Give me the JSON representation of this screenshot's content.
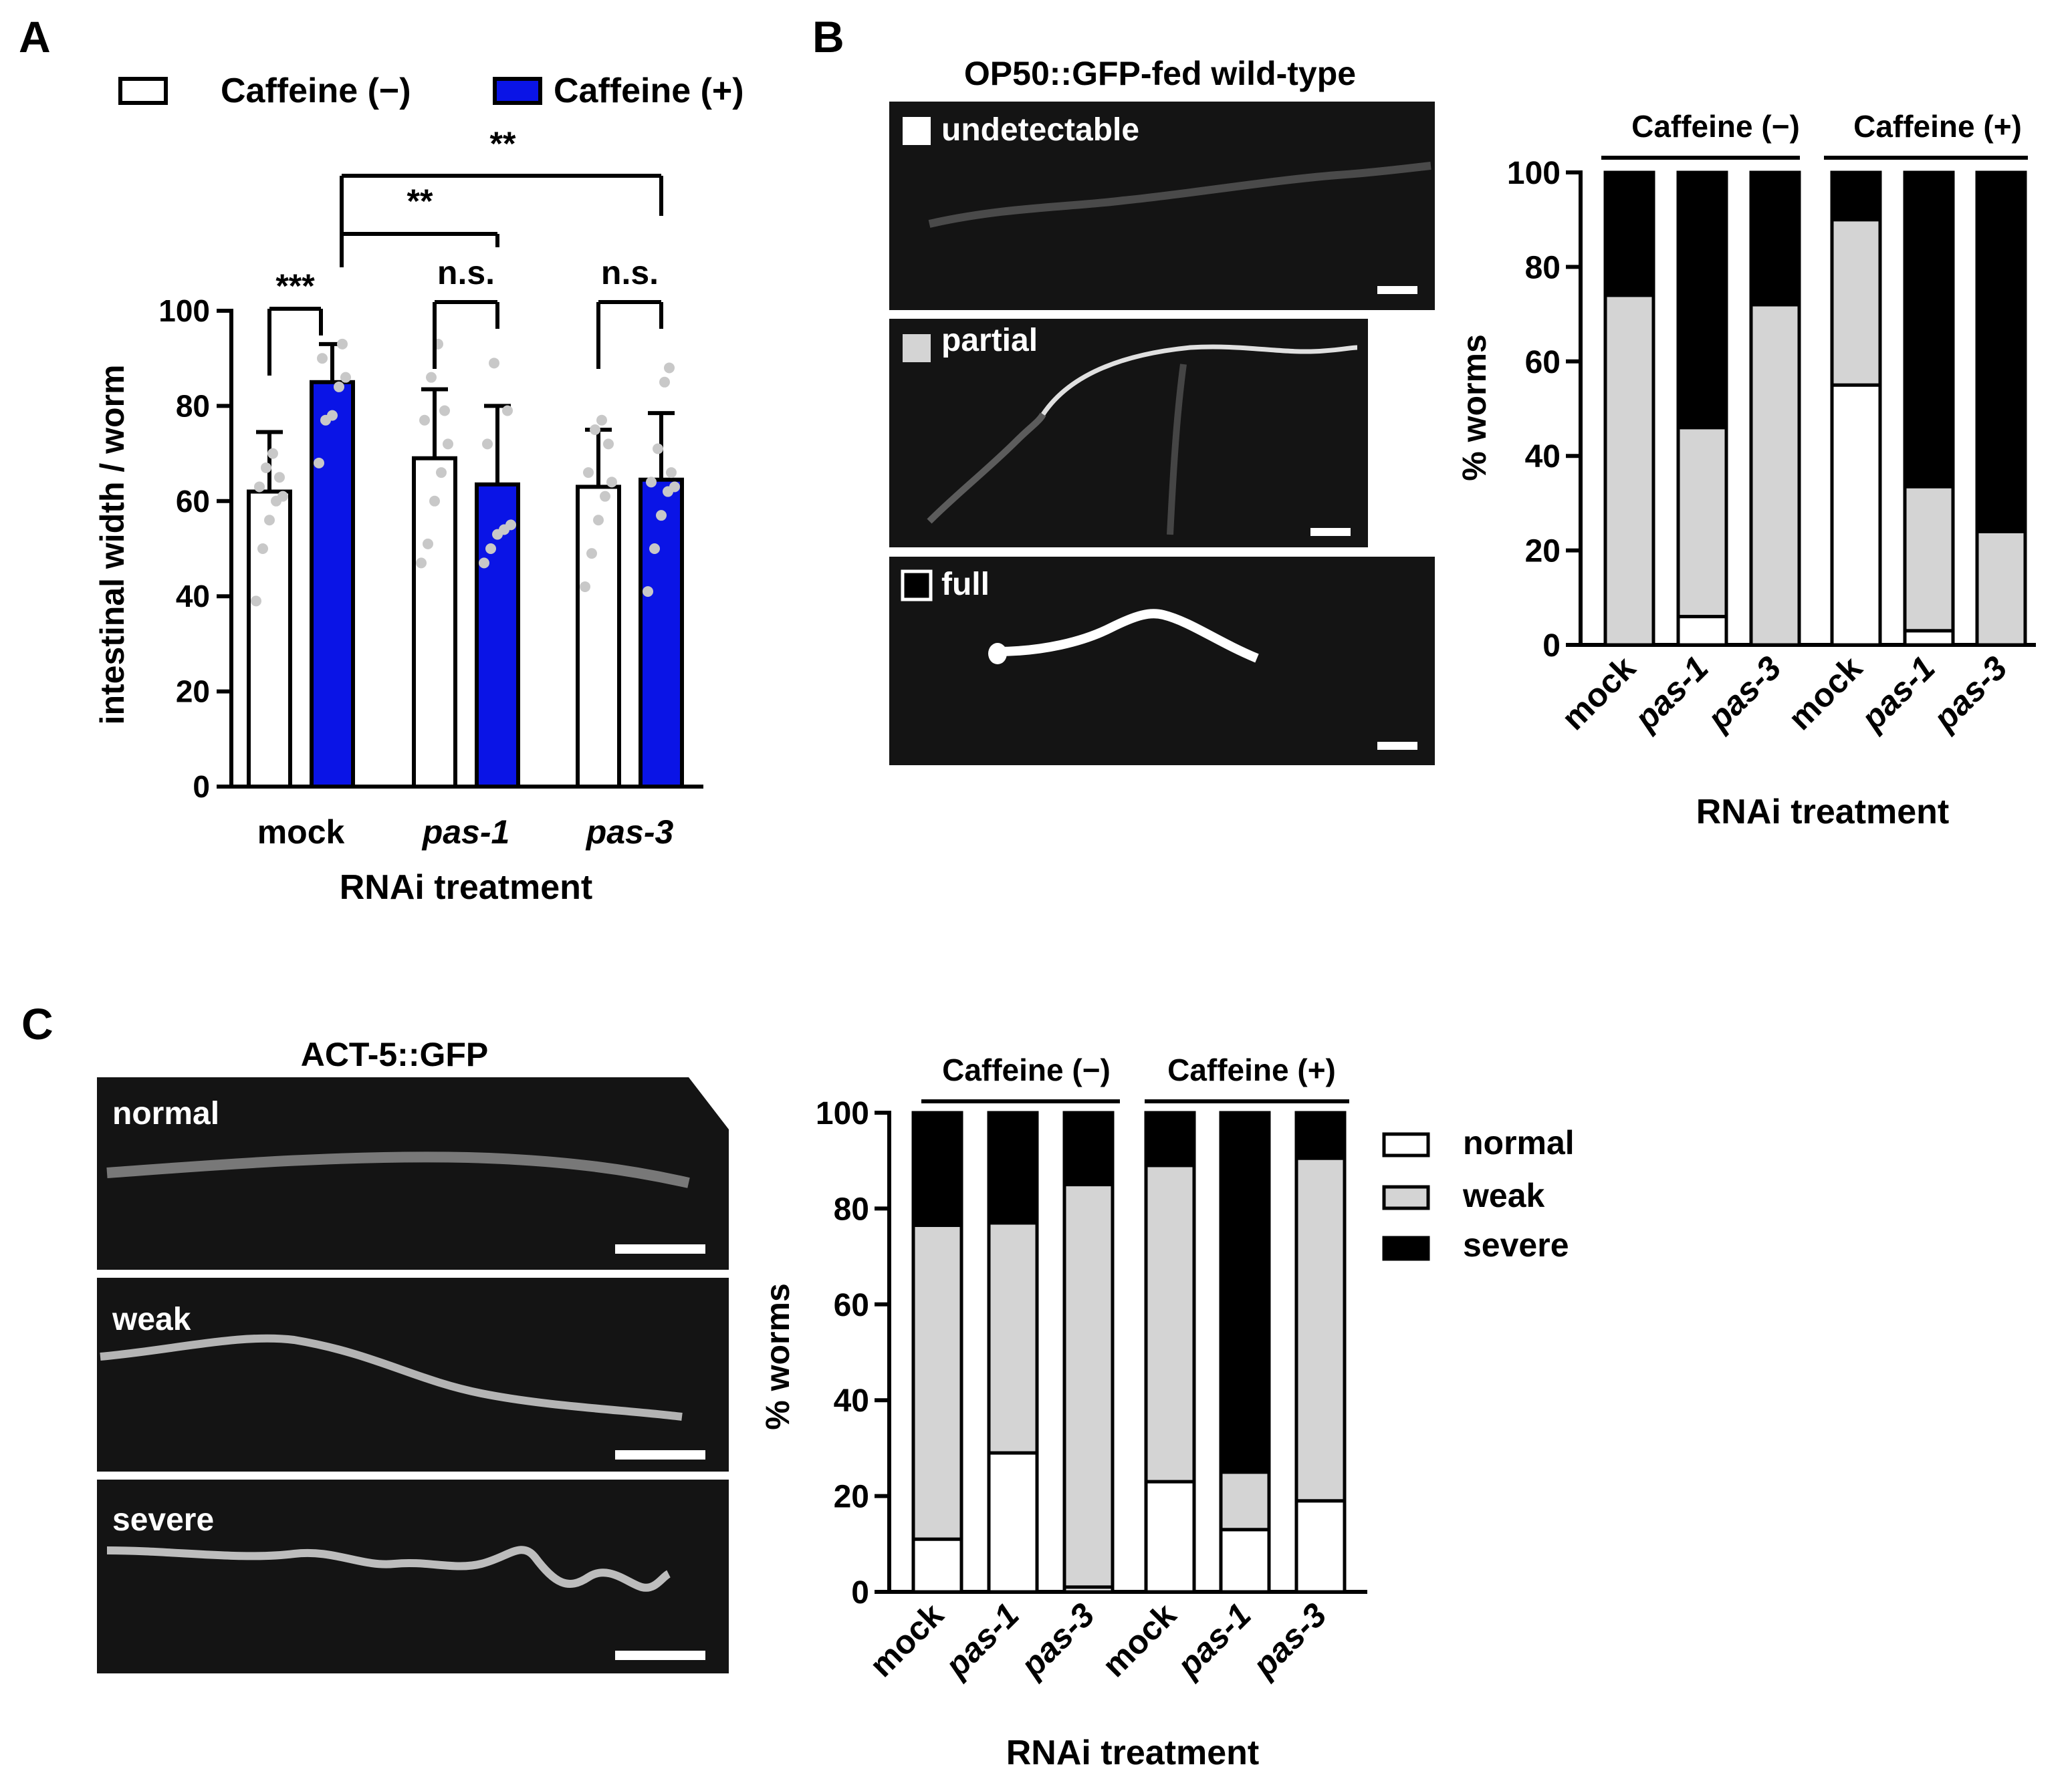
{
  "colors": {
    "blue": "#0a14e6",
    "gray": "#d4d4d4",
    "black": "#000000",
    "white": "#ffffff",
    "dot": "#c8c8c8",
    "micrograph_bg": "#141414",
    "worm_signal": "#e6e6e6"
  },
  "chart_data": [
    {
      "panel": "A",
      "type": "bar",
      "title": "",
      "xlabel": "RNAi treatment",
      "ylabel": "intestinal width / worm",
      "ylim": [
        0,
        100
      ],
      "yticks": [
        0,
        20,
        40,
        60,
        80,
        100
      ],
      "categories": [
        "mock",
        "pas-1",
        "pas-3"
      ],
      "legend": [
        "Caffeine (−)",
        "Caffeine (+)"
      ],
      "series": [
        {
          "name": "Caffeine (−)",
          "values": [
            62,
            69,
            63
          ],
          "errors": [
            12.5,
            14.5,
            12
          ],
          "points": [
            [
              39,
              50,
              56,
              60,
              61,
              63,
              65,
              67,
              70
            ],
            [
              47,
              51,
              60,
              66,
              72,
              77,
              79,
              86,
              93
            ],
            [
              42,
              49,
              56,
              61,
              64,
              66,
              72,
              75,
              77
            ]
          ]
        },
        {
          "name": "Caffeine (+)",
          "values": [
            85,
            63.5,
            64.5
          ],
          "errors": [
            8,
            16.5,
            14
          ],
          "points": [
            [
              68,
              77,
              78,
              84,
              86,
              90,
              93
            ],
            [
              47,
              50,
              53,
              54,
              55,
              72,
              79,
              89
            ],
            [
              41,
              50,
              57,
              62,
              63,
              64,
              66,
              71,
              85,
              88
            ]
          ]
        }
      ],
      "significance": [
        {
          "label": "***",
          "from": "mock (−)",
          "to": "mock (+)"
        },
        {
          "label": "n.s.",
          "from": "pas-1 (−)",
          "to": "pas-1 (+)"
        },
        {
          "label": "n.s.",
          "from": "pas-3 (−)",
          "to": "pas-3 (+)"
        },
        {
          "label": "**",
          "from": "mock (+)",
          "to": "pas-1 (+)"
        },
        {
          "label": "**",
          "from": "mock (+)",
          "to": "pas-3 (+)"
        }
      ]
    },
    {
      "panel": "B",
      "type": "bar",
      "stacked": true,
      "xlabel": "RNAi treatment",
      "ylabel": "% worms",
      "ylim": [
        0,
        100
      ],
      "yticks": [
        0,
        20,
        40,
        60,
        80,
        100
      ],
      "groups": [
        "Caffeine (−)",
        "Caffeine (+)"
      ],
      "categories": [
        "mock",
        "pas-1",
        "pas-3",
        "mock",
        "pas-1",
        "pas-3"
      ],
      "series": [
        {
          "name": "undetectable",
          "values": [
            0,
            6,
            0,
            55,
            3,
            0
          ]
        },
        {
          "name": "partial",
          "values": [
            74,
            40,
            72,
            35,
            30.5,
            24
          ]
        },
        {
          "name": "full",
          "values": [
            26,
            54,
            28,
            10,
            66.5,
            76
          ]
        }
      ]
    },
    {
      "panel": "C",
      "type": "bar",
      "stacked": true,
      "xlabel": "RNAi treatment",
      "ylabel": "% worms",
      "ylim": [
        0,
        100
      ],
      "yticks": [
        0,
        20,
        40,
        60,
        80,
        100
      ],
      "groups": [
        "Caffeine (−)",
        "Caffeine (+)"
      ],
      "categories": [
        "mock",
        "pas-1",
        "pas-3",
        "mock",
        "pas-1",
        "pas-3"
      ],
      "legend": [
        "normal",
        "weak",
        "severe"
      ],
      "series": [
        {
          "name": "normal",
          "values": [
            11,
            29,
            1,
            23,
            13,
            19
          ]
        },
        {
          "name": "weak",
          "values": [
            65.5,
            48,
            84,
            66,
            12,
            71.5
          ]
        },
        {
          "name": "severe",
          "values": [
            23.5,
            23,
            15,
            11,
            75,
            9.5
          ]
        }
      ]
    }
  ],
  "panel_labels": {
    "a": "A",
    "b": "B",
    "c": "C"
  },
  "panel_b_images": {
    "title": "OP50::GFP-fed wild-type",
    "labels": [
      "undetectable",
      "partial",
      "full"
    ]
  },
  "panel_c_images": {
    "title": "ACT-5::GFP",
    "labels": [
      "normal",
      "weak",
      "severe"
    ]
  }
}
